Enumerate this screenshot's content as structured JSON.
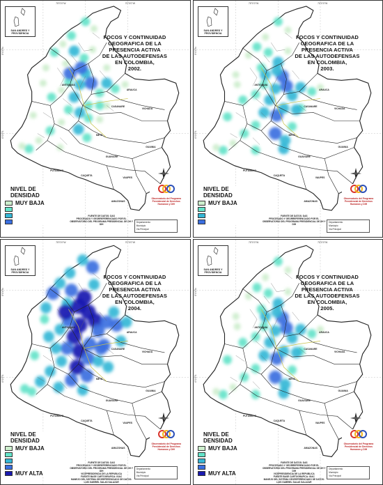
{
  "colors": {
    "very_low": "#cdeecd",
    "low": "#64e3c9",
    "medium": "#35b7d6",
    "high": "#3b6fe0",
    "very_high": "#1a1ab0",
    "border": "#222222",
    "background": "#ffffff"
  },
  "coords": {
    "top_long_a": "75°0'0\"W",
    "top_long_b": "70°0'0\"W",
    "lat_a": "5°0'0\"N",
    "lat_b": "0°0'0\"S"
  },
  "inset_label": "SAN ANDRES Y PROVIDENCIA",
  "legend": {
    "title_line1": "NIVEL DE",
    "title_line2": "DENSIDAD",
    "very_low": "MUY BAJA",
    "very_high": "MUY ALTA"
  },
  "logo_text": "Observatorio del Programa Presidencial de Derechos Humanos y DIH",
  "map_legend": {
    "departamento": "Departamento",
    "municipio": "Municipio",
    "via": "Via Principal"
  },
  "place_names": {
    "meta": "META",
    "vichada": "VICHADA",
    "guainia": "GUAINIA",
    "guaviare": "GUAVIARE",
    "vaupes": "VAUPES",
    "caqueta": "CAQUETA",
    "amazonas": "AMAZONAS",
    "putumayo": "PUTUMAYO",
    "casanare": "CASANARE",
    "arauca": "ARAUCA",
    "antioquia": "ANTIOQUIA"
  },
  "panels": [
    {
      "id": "2002",
      "title": "FOCOS Y CONTINUIDAD GEOGRAFICA DE LA PRESENCIA ACTIVA DE LAS AUTODEFENSAS EN COLOMBIA, 2002.",
      "title_lines": [
        "FOCOS Y CONTINUIDAD",
        "GEOGRAFICA DE LA",
        "PRESENCIA ACTIVA",
        "DE LAS AUTODEFENSAS",
        "EN COLOMBIA,",
        "2002."
      ],
      "legend_levels": [
        "very_low",
        "low",
        "medium",
        "high"
      ],
      "source_lines": [
        "FUENTE DE DATOS: DAS",
        "PROCESADO Y GEORREFERENCIADO POR EL",
        "OBSERVATORIO DEL PROGRAMA PRESIDENCIAL DE DH Y DIH"
      ],
      "intensity": 1
    },
    {
      "id": "2003",
      "title": "FOCOS Y CONTINUIDAD GEOGRAFICA DE LA PRESENCIA ACTIVA DE LAS AUTODEFENSAS EN COLOMBIA, 2003.",
      "title_lines": [
        "FOCOS Y CONTINUIDAD",
        "GEOGRAFICA DE LA",
        "PRESENCIA ACTIVA",
        "DE LAS AUTODEFENSAS",
        "EN COLOMBIA,",
        "2003."
      ],
      "legend_levels": [
        "very_low",
        "low",
        "medium",
        "high"
      ],
      "source_lines": [
        "FUENTE DE DATOS: DAS",
        "PROCESADO Y GEORREFERENCIADO POR EL",
        "OBSERVATORIO DEL PROGRAMA PRESIDENCIAL DE DH Y DIH"
      ],
      "intensity": 2
    },
    {
      "id": "2004",
      "title": "FOCOS Y CONTINUIDAD GEOGRAFICA DE LA PRESENCIA ACTIVA DE LAS AUTODEFENSAS EN COLOMBIA, 2004.",
      "title_lines": [
        "FOCOS Y CONTINUIDAD",
        "GEOGRAFICA DE LA",
        "PRESENCIA ACTIVA",
        "DE LAS AUTODEFENSAS",
        "EN COLOMBIA,",
        "2004."
      ],
      "legend_levels": [
        "very_low",
        "low",
        "medium",
        "high",
        "very_high"
      ],
      "source_lines": [
        "FUENTE DE DATOS: DAS",
        "PROCESADO Y GEORREFERENCIADO POR EL",
        "OBSERVATORIO DEL PROGRAMA PRESIDENCIAL DE DH Y DIH",
        "VICEPRESIDENCIA DE LA REPUBLICA",
        "FUENTE BASE CARTOGRAFICA: IGAC",
        "MANEJO DEL SISTEMA GEOREFERENCIADO DE DATOS:",
        "LUIS GABRIEL SALAS SALAZAR"
      ],
      "intensity": 3
    },
    {
      "id": "2005",
      "title": "FOCOS Y CONTINUIDAD GEOGRAFICA DE LA PRESENCIA ACTIVA DE LAS AUTODEFENSAS EN COLOMBIA, 2005.",
      "title_lines": [
        "FOCOS Y CONTINUIDAD",
        "GEOGRAFICA DE LA",
        "PRESENCIA ACTIVA",
        "DE LAS AUTODEFENSAS",
        "EN COLOMBIA,",
        "2005."
      ],
      "legend_levels": [
        "very_low",
        "low",
        "medium",
        "high",
        "very_high"
      ],
      "source_lines": [
        "FUENTE DE DATOS: DAS",
        "PROCESADO Y GEORREFERENCIADO POR EL",
        "OBSERVATORIO DEL PROGRAMA PRESIDENCIAL DE DH Y DIH",
        "VICEPRESIDENCIA DE LA REPUBLICA",
        "FUENTE BASE CARTOGRAFICA: IGAC",
        "MANEJO DEL SISTEMA GEOREFERENCIADO DE DATOS:",
        "LUIS GABRIEL SALAS SALAZAR"
      ],
      "intensity": 2
    }
  ]
}
